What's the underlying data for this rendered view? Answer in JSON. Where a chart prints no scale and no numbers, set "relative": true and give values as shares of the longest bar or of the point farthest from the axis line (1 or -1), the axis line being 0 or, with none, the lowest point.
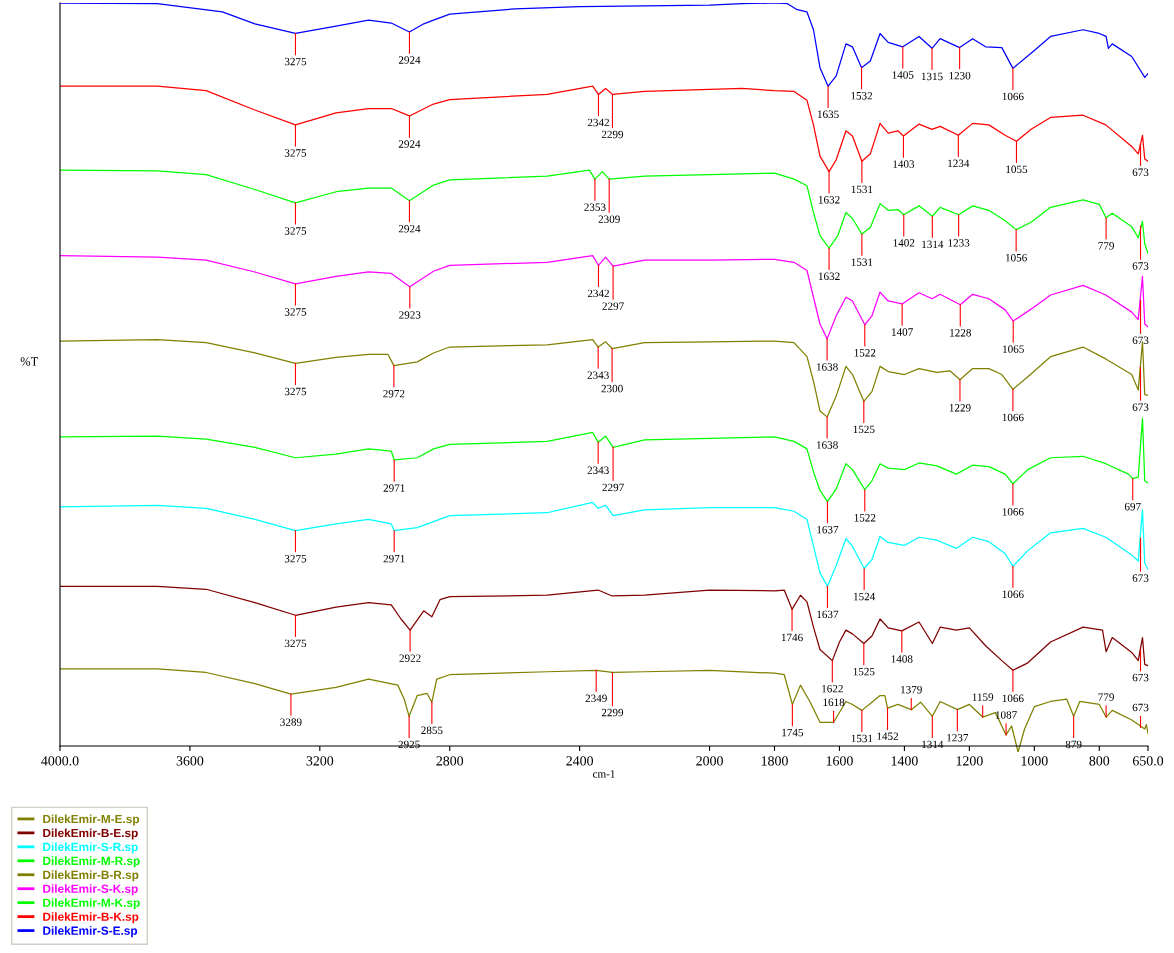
{
  "chart_data": {
    "type": "line",
    "relative": true,
    "xlabel": "cm-1",
    "ylabel": "%T",
    "legend": "bottom",
    "xlim": [
      4000,
      650
    ],
    "xticks": [
      {
        "value": 4000,
        "label": "4000.0"
      },
      3600,
      3200,
      2800,
      2400,
      2000,
      1800,
      1600,
      1400,
      1200,
      1000,
      800,
      {
        "value": 650,
        "label": "650.0"
      }
    ],
    "series": [
      {
        "name": "DilekEmir-M-E.sp",
        "color": "#808000",
        "x": [
          4000,
          3700,
          3550,
          3400,
          3289,
          3150,
          3050,
          2960,
          2940,
          2925,
          2900,
          2870,
          2855,
          2840,
          2800,
          2500,
          2349,
          2299,
          2200,
          2000,
          1800,
          1770,
          1745,
          1720,
          1690,
          1660,
          1618,
          1580,
          1560,
          1531,
          1500,
          1475,
          1460,
          1452,
          1420,
          1379,
          1350,
          1314,
          1290,
          1237,
          1200,
          1159,
          1120,
          1087,
          1070,
          1050,
          1030,
          1000,
          950,
          900,
          879,
          860,
          800,
          779,
          760,
          700,
          660,
          655,
          650
        ],
        "values": [
          0.104,
          0.104,
          0.099,
          0.084,
          0.07,
          0.079,
          0.09,
          0.082,
          0.063,
          0.04,
          0.068,
          0.071,
          0.059,
          0.09,
          0.096,
          0.1,
          0.102,
          0.099,
          0.1,
          0.102,
          0.098,
          0.096,
          0.056,
          0.082,
          0.059,
          0.032,
          0.032,
          0.06,
          0.056,
          0.048,
          0.059,
          0.068,
          0.068,
          0.051,
          0.056,
          0.049,
          0.059,
          0.04,
          0.06,
          0.049,
          0.056,
          0.039,
          0.045,
          0.015,
          0.027,
          -0.008,
          0.023,
          0.053,
          0.06,
          0.063,
          0.04,
          0.06,
          0.056,
          0.039,
          0.048,
          0.035,
          0.023,
          0.029,
          0.017
        ]
      },
      {
        "name": "DilekEmir-B-E.sp",
        "color": "#800000",
        "x": [
          4000,
          3700,
          3550,
          3400,
          3275,
          3150,
          3050,
          2980,
          2950,
          2922,
          2880,
          2855,
          2830,
          2800,
          2500,
          2343,
          2300,
          2200,
          2000,
          1800,
          1770,
          1746,
          1720,
          1700,
          1680,
          1660,
          1622,
          1600,
          1580,
          1560,
          1525,
          1500,
          1475,
          1450,
          1408,
          1355,
          1314,
          1290,
          1240,
          1200,
          1150,
          1100,
          1066,
          1020,
          950,
          850,
          790,
          779,
          760,
          700,
          680,
          667,
          660,
          650
        ],
        "values": [
          0.215,
          0.215,
          0.211,
          0.193,
          0.176,
          0.187,
          0.193,
          0.19,
          0.171,
          0.156,
          0.182,
          0.174,
          0.197,
          0.201,
          0.203,
          0.21,
          0.202,
          0.203,
          0.21,
          0.209,
          0.21,
          0.184,
          0.203,
          0.194,
          0.16,
          0.13,
          0.115,
          0.14,
          0.156,
          0.151,
          0.138,
          0.148,
          0.171,
          0.159,
          0.155,
          0.167,
          0.138,
          0.16,
          0.156,
          0.159,
          0.135,
          0.115,
          0.102,
          0.112,
          0.14,
          0.16,
          0.156,
          0.127,
          0.146,
          0.126,
          0.115,
          0.146,
          0.11,
          0.108
        ]
      },
      {
        "name": "DilekEmir-S-R.sp",
        "color": "#00ffff",
        "x": [
          4000,
          3700,
          3550,
          3400,
          3275,
          3150,
          3050,
          2980,
          2971,
          2900,
          2850,
          2800,
          2500,
          2360,
          2343,
          2320,
          2297,
          2200,
          2000,
          1800,
          1740,
          1700,
          1680,
          1660,
          1637,
          1610,
          1580,
          1560,
          1524,
          1500,
          1475,
          1450,
          1400,
          1355,
          1300,
          1240,
          1190,
          1140,
          1090,
          1066,
          1020,
          950,
          850,
          780,
          700,
          680,
          667,
          660,
          650
        ],
        "values": [
          0.322,
          0.324,
          0.32,
          0.305,
          0.29,
          0.299,
          0.305,
          0.299,
          0.29,
          0.294,
          0.302,
          0.31,
          0.314,
          0.328,
          0.32,
          0.324,
          0.31,
          0.318,
          0.321,
          0.321,
          0.316,
          0.305,
          0.269,
          0.233,
          0.215,
          0.243,
          0.279,
          0.269,
          0.239,
          0.251,
          0.282,
          0.274,
          0.27,
          0.281,
          0.277,
          0.266,
          0.281,
          0.275,
          0.259,
          0.242,
          0.263,
          0.287,
          0.293,
          0.281,
          0.257,
          0.249,
          0.318,
          0.246,
          0.238
        ]
      },
      {
        "name": "DilekEmir-M-R.sp",
        "color": "#00ff00",
        "x": [
          4000,
          3700,
          3550,
          3400,
          3275,
          3150,
          3050,
          2980,
          2971,
          2900,
          2850,
          2800,
          2500,
          2360,
          2343,
          2320,
          2297,
          2200,
          2000,
          1800,
          1740,
          1700,
          1680,
          1660,
          1637,
          1610,
          1580,
          1560,
          1522,
          1500,
          1475,
          1450,
          1400,
          1355,
          1300,
          1240,
          1190,
          1140,
          1090,
          1066,
          1020,
          950,
          850,
          780,
          710,
          697,
          680,
          667,
          660,
          650
        ],
        "values": [
          0.416,
          0.417,
          0.413,
          0.402,
          0.388,
          0.393,
          0.4,
          0.397,
          0.385,
          0.388,
          0.4,
          0.406,
          0.41,
          0.422,
          0.409,
          0.417,
          0.402,
          0.412,
          0.414,
          0.416,
          0.41,
          0.4,
          0.369,
          0.344,
          0.329,
          0.346,
          0.38,
          0.372,
          0.345,
          0.357,
          0.38,
          0.374,
          0.372,
          0.381,
          0.377,
          0.366,
          0.378,
          0.376,
          0.366,
          0.353,
          0.372,
          0.388,
          0.39,
          0.38,
          0.366,
          0.36,
          0.362,
          0.441,
          0.357,
          0.354
        ]
      },
      {
        "name": "DilekEmir-B-R.sp",
        "color": "#808000",
        "x": [
          4000,
          3700,
          3550,
          3400,
          3275,
          3150,
          3050,
          2990,
          2972,
          2900,
          2850,
          2800,
          2500,
          2360,
          2343,
          2320,
          2300,
          2200,
          2000,
          1800,
          1740,
          1700,
          1680,
          1660,
          1638,
          1610,
          1580,
          1560,
          1525,
          1500,
          1475,
          1450,
          1400,
          1355,
          1300,
          1260,
          1229,
          1190,
          1140,
          1100,
          1066,
          1020,
          950,
          850,
          780,
          700,
          680,
          667,
          660,
          650
        ],
        "values": [
          0.545,
          0.547,
          0.543,
          0.529,
          0.515,
          0.523,
          0.527,
          0.527,
          0.512,
          0.517,
          0.529,
          0.537,
          0.54,
          0.547,
          0.537,
          0.544,
          0.535,
          0.543,
          0.544,
          0.545,
          0.543,
          0.524,
          0.491,
          0.451,
          0.443,
          0.471,
          0.511,
          0.5,
          0.464,
          0.477,
          0.511,
          0.504,
          0.5,
          0.508,
          0.503,
          0.505,
          0.493,
          0.508,
          0.508,
          0.5,
          0.48,
          0.497,
          0.524,
          0.537,
          0.521,
          0.5,
          0.479,
          0.544,
          0.473,
          0.472
        ]
      },
      {
        "name": "DilekEmir-S-K.sp",
        "color": "#ff00ff",
        "x": [
          4000,
          3700,
          3550,
          3400,
          3275,
          3150,
          3050,
          2980,
          2923,
          2850,
          2800,
          2500,
          2360,
          2342,
          2320,
          2297,
          2200,
          2000,
          1800,
          1740,
          1700,
          1680,
          1660,
          1638,
          1610,
          1580,
          1560,
          1522,
          1500,
          1475,
          1450,
          1407,
          1355,
          1315,
          1290,
          1228,
          1190,
          1140,
          1090,
          1065,
          1010,
          950,
          850,
          780,
          700,
          680,
          667,
          660,
          650
        ],
        "values": [
          0.66,
          0.658,
          0.654,
          0.638,
          0.622,
          0.632,
          0.638,
          0.636,
          0.618,
          0.639,
          0.647,
          0.651,
          0.66,
          0.647,
          0.658,
          0.646,
          0.654,
          0.654,
          0.655,
          0.651,
          0.64,
          0.604,
          0.568,
          0.548,
          0.579,
          0.604,
          0.599,
          0.567,
          0.579,
          0.611,
          0.599,
          0.595,
          0.61,
          0.602,
          0.608,
          0.594,
          0.608,
          0.602,
          0.587,
          0.572,
          0.588,
          0.607,
          0.62,
          0.607,
          0.584,
          0.574,
          0.632,
          0.568,
          0.564
        ]
      },
      {
        "name": "DilekEmir-M-K.sp",
        "color": "#00ff00",
        "x": [
          4000,
          3700,
          3550,
          3400,
          3275,
          3150,
          3050,
          2980,
          2924,
          2850,
          2800,
          2500,
          2370,
          2353,
          2330,
          2309,
          2200,
          2000,
          1800,
          1740,
          1700,
          1680,
          1660,
          1632,
          1605,
          1580,
          1560,
          1531,
          1505,
          1475,
          1450,
          1420,
          1402,
          1355,
          1314,
          1290,
          1233,
          1190,
          1140,
          1090,
          1056,
          1010,
          950,
          850,
          800,
          779,
          760,
          700,
          680,
          667,
          660,
          650
        ],
        "values": [
          0.775,
          0.774,
          0.769,
          0.749,
          0.731,
          0.746,
          0.751,
          0.751,
          0.734,
          0.755,
          0.762,
          0.767,
          0.775,
          0.763,
          0.773,
          0.763,
          0.767,
          0.769,
          0.771,
          0.763,
          0.754,
          0.718,
          0.687,
          0.67,
          0.687,
          0.718,
          0.71,
          0.689,
          0.698,
          0.73,
          0.721,
          0.722,
          0.715,
          0.727,
          0.713,
          0.725,
          0.715,
          0.727,
          0.721,
          0.707,
          0.695,
          0.705,
          0.725,
          0.735,
          0.729,
          0.711,
          0.717,
          0.699,
          0.684,
          0.706,
          0.676,
          0.663
        ]
      },
      {
        "name": "DilekEmir-B-K.sp",
        "color": "#ff0000",
        "x": [
          4000,
          3700,
          3550,
          3400,
          3275,
          3150,
          3050,
          2980,
          2924,
          2850,
          2800,
          2500,
          2360,
          2342,
          2320,
          2299,
          2200,
          1900,
          1800,
          1740,
          1700,
          1680,
          1660,
          1632,
          1610,
          1580,
          1560,
          1531,
          1505,
          1475,
          1450,
          1420,
          1403,
          1355,
          1315,
          1290,
          1234,
          1190,
          1140,
          1090,
          1055,
          1010,
          950,
          850,
          780,
          700,
          680,
          667,
          660,
          650
        ],
        "values": [
          0.888,
          0.888,
          0.882,
          0.856,
          0.836,
          0.852,
          0.858,
          0.858,
          0.848,
          0.864,
          0.87,
          0.877,
          0.888,
          0.877,
          0.885,
          0.877,
          0.881,
          0.885,
          0.882,
          0.881,
          0.869,
          0.836,
          0.794,
          0.773,
          0.789,
          0.828,
          0.821,
          0.787,
          0.797,
          0.838,
          0.825,
          0.828,
          0.821,
          0.837,
          0.83,
          0.834,
          0.822,
          0.838,
          0.836,
          0.822,
          0.814,
          0.83,
          0.846,
          0.849,
          0.836,
          0.807,
          0.797,
          0.822,
          0.79,
          0.787
        ]
      },
      {
        "name": "DilekEmir-S-E.sp",
        "color": "#0000ff",
        "x": [
          4000,
          3700,
          3500,
          3400,
          3275,
          3150,
          3050,
          2980,
          2924,
          2880,
          2850,
          2800,
          2600,
          2400,
          2000,
          1900,
          1800,
          1760,
          1730,
          1700,
          1680,
          1660,
          1635,
          1610,
          1580,
          1560,
          1532,
          1505,
          1475,
          1450,
          1405,
          1355,
          1315,
          1290,
          1230,
          1190,
          1150,
          1100,
          1066,
          1000,
          950,
          850,
          800,
          779,
          772,
          760,
          700,
          660,
          650
        ],
        "values": [
          1.0,
          0.999,
          0.988,
          0.972,
          0.959,
          0.969,
          0.977,
          0.973,
          0.961,
          0.972,
          0.977,
          0.985,
          0.992,
          0.995,
          0.997,
          0.999,
          1.0,
          0.999,
          0.991,
          0.988,
          0.964,
          0.913,
          0.888,
          0.902,
          0.945,
          0.941,
          0.913,
          0.922,
          0.959,
          0.947,
          0.941,
          0.955,
          0.939,
          0.952,
          0.94,
          0.952,
          0.941,
          0.94,
          0.912,
          0.936,
          0.955,
          0.964,
          0.959,
          0.955,
          0.939,
          0.945,
          0.928,
          0.9,
          0.905
        ]
      }
    ],
    "annotations": [
      {
        "text": "3275",
        "x": 3275,
        "y": 0.959
      },
      {
        "text": "2924",
        "x": 2924,
        "y": 0.961
      },
      {
        "text": "1635",
        "x": 1635,
        "y": 0.888
      },
      {
        "text": "1532",
        "x": 1532,
        "y": 0.913
      },
      {
        "text": "1405",
        "x": 1405,
        "y": 0.941
      },
      {
        "text": "1315",
        "x": 1315,
        "y": 0.939
      },
      {
        "text": "1230",
        "x": 1230,
        "y": 0.94
      },
      {
        "text": "1066",
        "x": 1066,
        "y": 0.912
      },
      {
        "text": "3275",
        "x": 3275,
        "y": 0.836
      },
      {
        "text": "2924",
        "x": 2924,
        "y": 0.848
      },
      {
        "text": "2342",
        "x": 2342,
        "y": 0.877
      },
      {
        "text": "2299",
        "x": 2299,
        "y": 0.877
      },
      {
        "text": "1632",
        "x": 1632,
        "y": 0.773
      },
      {
        "text": "1531",
        "x": 1531,
        "y": 0.787
      },
      {
        "text": "1403",
        "x": 1403,
        "y": 0.821
      },
      {
        "text": "1234",
        "x": 1234,
        "y": 0.822
      },
      {
        "text": "1055",
        "x": 1055,
        "y": 0.814
      },
      {
        "text": "673",
        "x": 673,
        "y": 0.81
      },
      {
        "text": "3275",
        "x": 3275,
        "y": 0.731
      },
      {
        "text": "2924",
        "x": 2924,
        "y": 0.734
      },
      {
        "text": "2353",
        "x": 2353,
        "y": 0.763
      },
      {
        "text": "2309",
        "x": 2309,
        "y": 0.763
      },
      {
        "text": "1632",
        "x": 1632,
        "y": 0.67
      },
      {
        "text": "1531",
        "x": 1531,
        "y": 0.689
      },
      {
        "text": "1402",
        "x": 1402,
        "y": 0.715
      },
      {
        "text": "1314",
        "x": 1314,
        "y": 0.713
      },
      {
        "text": "1233",
        "x": 1233,
        "y": 0.715
      },
      {
        "text": "1056",
        "x": 1056,
        "y": 0.695
      },
      {
        "text": "779",
        "x": 779,
        "y": 0.711
      },
      {
        "text": "673",
        "x": 673,
        "y": 0.7
      },
      {
        "text": "3275",
        "x": 3275,
        "y": 0.622
      },
      {
        "text": "2923",
        "x": 2923,
        "y": 0.618
      },
      {
        "text": "2342",
        "x": 2342,
        "y": 0.647
      },
      {
        "text": "2297",
        "x": 2297,
        "y": 0.646
      },
      {
        "text": "1638",
        "x": 1638,
        "y": 0.548
      },
      {
        "text": "1522",
        "x": 1522,
        "y": 0.567
      },
      {
        "text": "1407",
        "x": 1407,
        "y": 0.595
      },
      {
        "text": "1228",
        "x": 1228,
        "y": 0.594
      },
      {
        "text": "1065",
        "x": 1065,
        "y": 0.572
      },
      {
        "text": "673",
        "x": 673,
        "y": 0.6
      },
      {
        "text": "3275",
        "x": 3275,
        "y": 0.515
      },
      {
        "text": "2972",
        "x": 2972,
        "y": 0.512
      },
      {
        "text": "2343",
        "x": 2343,
        "y": 0.537
      },
      {
        "text": "2300",
        "x": 2300,
        "y": 0.535
      },
      {
        "text": "1638",
        "x": 1638,
        "y": 0.443
      },
      {
        "text": "1525",
        "x": 1525,
        "y": 0.464
      },
      {
        "text": "1229",
        "x": 1229,
        "y": 0.493
      },
      {
        "text": "1066",
        "x": 1066,
        "y": 0.48
      },
      {
        "text": "673",
        "x": 673,
        "y": 0.51
      },
      {
        "text": "2971",
        "x": 2971,
        "y": 0.385
      },
      {
        "text": "2343",
        "x": 2343,
        "y": 0.409
      },
      {
        "text": "2297",
        "x": 2297,
        "y": 0.402
      },
      {
        "text": "1637",
        "x": 1637,
        "y": 0.329
      },
      {
        "text": "1522",
        "x": 1522,
        "y": 0.345
      },
      {
        "text": "1066",
        "x": 1066,
        "y": 0.353
      },
      {
        "text": "697",
        "x": 697,
        "y": 0.36
      },
      {
        "text": "3275",
        "x": 3275,
        "y": 0.29
      },
      {
        "text": "2971",
        "x": 2971,
        "y": 0.29
      },
      {
        "text": "1637",
        "x": 1637,
        "y": 0.215
      },
      {
        "text": "1524",
        "x": 1524,
        "y": 0.239
      },
      {
        "text": "1066",
        "x": 1066,
        "y": 0.242
      },
      {
        "text": "673",
        "x": 673,
        "y": 0.28
      },
      {
        "text": "3275",
        "x": 3275,
        "y": 0.176
      },
      {
        "text": "2922",
        "x": 2922,
        "y": 0.156
      },
      {
        "text": "1746",
        "x": 1746,
        "y": 0.184
      },
      {
        "text": "1622",
        "x": 1622,
        "y": 0.115
      },
      {
        "text": "1525",
        "x": 1525,
        "y": 0.138
      },
      {
        "text": "1408",
        "x": 1408,
        "y": 0.155
      },
      {
        "text": "1066",
        "x": 1066,
        "y": 0.102
      },
      {
        "text": "673",
        "x": 673,
        "y": 0.13
      },
      {
        "text": "3289",
        "x": 3289,
        "y": 0.07
      },
      {
        "text": "2925",
        "x": 2925,
        "y": 0.04
      },
      {
        "text": "2855",
        "x": 2855,
        "y": 0.059
      },
      {
        "text": "2349",
        "x": 2349,
        "y": 0.102
      },
      {
        "text": "2299",
        "x": 2299,
        "y": 0.099
      },
      {
        "text": "1745",
        "x": 1745,
        "y": 0.056
      },
      {
        "text": "1618",
        "x": 1618,
        "y": 0.032
      },
      {
        "text": "1531",
        "x": 1531,
        "y": 0.048
      },
      {
        "text": "1452",
        "x": 1452,
        "y": 0.051
      },
      {
        "text": "1379",
        "x": 1379,
        "y": 0.049
      },
      {
        "text": "1314",
        "x": 1314,
        "y": 0.04
      },
      {
        "text": "1237",
        "x": 1237,
        "y": 0.049
      },
      {
        "text": "1159",
        "x": 1159,
        "y": 0.039
      },
      {
        "text": "1087",
        "x": 1087,
        "y": 0.015
      },
      {
        "text": "879",
        "x": 879,
        "y": 0.04
      },
      {
        "text": "779",
        "x": 779,
        "y": 0.039
      },
      {
        "text": "673",
        "x": 673,
        "y": 0.025
      }
    ]
  }
}
